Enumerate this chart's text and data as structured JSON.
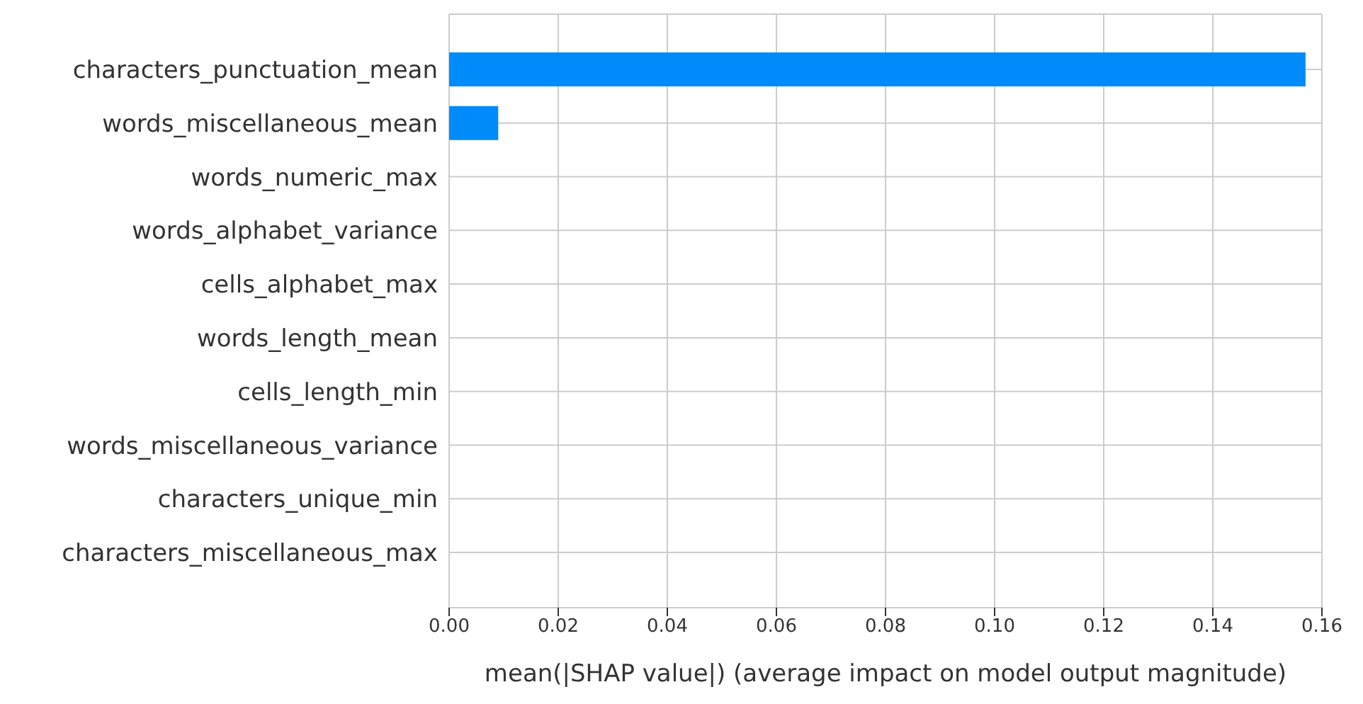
{
  "chart_data": {
    "type": "bar",
    "orientation": "horizontal",
    "xlabel": "mean(|SHAP value|) (average impact on model output magnitude)",
    "categories": [
      "characters_punctuation_mean",
      "words_miscellaneous_mean",
      "words_numeric_max",
      "words_alphabet_variance",
      "cells_alphabet_max",
      "words_length_mean",
      "cells_length_min",
      "words_miscellaneous_variance",
      "characters_unique_min",
      "characters_miscellaneous_max"
    ],
    "values": [
      0.157,
      0.009,
      0,
      0,
      0,
      0,
      0,
      0,
      0,
      0
    ],
    "color": "#008bfb",
    "xlim": [
      0,
      0.16
    ],
    "xticks": [
      {
        "value": 0,
        "label": "0.00"
      },
      {
        "value": 0.02,
        "label": "0.02"
      },
      {
        "value": 0.04,
        "label": "0.04"
      },
      {
        "value": 0.06,
        "label": "0.06"
      },
      {
        "value": 0.08,
        "label": "0.08"
      },
      {
        "value": 0.1,
        "label": "0.10"
      },
      {
        "value": 0.12,
        "label": "0.12"
      },
      {
        "value": 0.14,
        "label": "0.14"
      },
      {
        "value": 0.16,
        "label": "0.16"
      }
    ],
    "grid": true
  }
}
